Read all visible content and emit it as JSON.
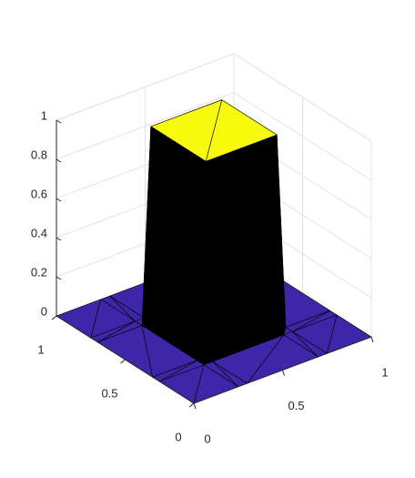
{
  "chart_data": {
    "type": "surface",
    "x": [
      0,
      0.25,
      0.3,
      0.7,
      0.75,
      1
    ],
    "y": [
      0,
      0.25,
      0.3,
      0.7,
      0.75,
      1
    ],
    "z": [
      [
        0,
        0,
        0,
        0,
        0,
        0
      ],
      [
        0,
        0,
        0,
        0,
        0,
        0
      ],
      [
        0,
        0,
        1,
        1,
        0,
        0
      ],
      [
        0,
        0,
        1,
        1,
        0,
        0
      ],
      [
        0,
        0,
        0,
        0,
        0,
        0
      ],
      [
        0,
        0,
        0,
        0,
        0,
        0
      ]
    ],
    "xlim": [
      0,
      1
    ],
    "ylim": [
      0,
      1
    ],
    "zlim": [
      0,
      1
    ],
    "xticks": [
      0,
      0.5,
      1
    ],
    "yticks": [
      0,
      0.5,
      1
    ],
    "zticks": [
      0,
      0.2,
      0.4,
      0.6,
      0.8,
      1
    ],
    "grid": true,
    "colormap": [
      "#3e26a8",
      "#f9fb0e"
    ],
    "edgecolor": "#000000"
  }
}
